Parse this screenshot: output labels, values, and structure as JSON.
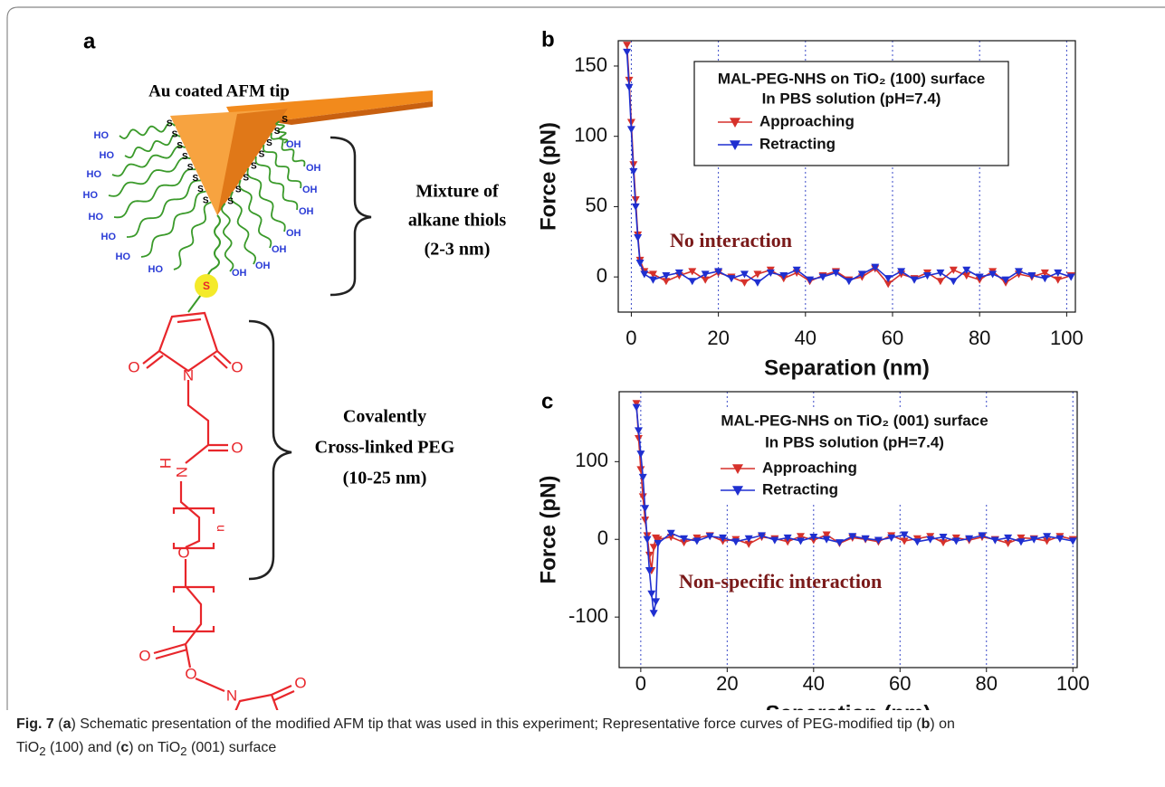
{
  "panel_a": {
    "label": "a",
    "tip": "Au coated AFM tip",
    "group_left": "HO",
    "group_right": "OH",
    "sulfur": "S",
    "bracket_top": [
      "Mixture of",
      "alkane thiols",
      "(2-3 nm)"
    ],
    "bracket_bottom": [
      "Covalently",
      "Cross-linked PEG",
      "(10-25 nm)"
    ],
    "atoms": {
      "O": "O",
      "N": "N",
      "H": "H",
      "n": "n"
    }
  },
  "chart_data": [
    {
      "type": "line",
      "panel": "b",
      "legend_title": [
        "MAL-PEG-NHS on TiO₂ (100) surface",
        "In PBS solution (pH=7.4)"
      ],
      "annotation": "No interaction",
      "xlabel": "Separation (nm)",
      "ylabel": "Force (pN)",
      "x": [
        -1,
        -0.5,
        0,
        0.5,
        1,
        1.5,
        2,
        3,
        5,
        8,
        11,
        14,
        17,
        20,
        23,
        26,
        29,
        32,
        35,
        38,
        41,
        44,
        47,
        50,
        53,
        56,
        59,
        62,
        65,
        68,
        71,
        74,
        77,
        80,
        83,
        86,
        89,
        92,
        95,
        98,
        101
      ],
      "series": [
        {
          "name": "Approaching",
          "color": "#d6312b",
          "values": [
            165,
            140,
            110,
            80,
            55,
            30,
            12,
            4,
            2,
            -3,
            1,
            4,
            -2,
            3,
            0,
            -4,
            2,
            5,
            -1,
            3,
            -3,
            1,
            4,
            -2,
            0,
            6,
            -5,
            2,
            -1,
            3,
            -3,
            5,
            1,
            -2,
            4,
            -4,
            2,
            0,
            3,
            -2,
            1
          ]
        },
        {
          "name": "Retracting",
          "color": "#1f2fd0",
          "values": [
            160,
            135,
            105,
            75,
            50,
            28,
            10,
            2,
            -2,
            1,
            3,
            -3,
            2,
            4,
            -1,
            2,
            -4,
            3,
            1,
            5,
            -2,
            0,
            3,
            -3,
            2,
            7,
            -1,
            4,
            -2,
            1,
            3,
            -3,
            5,
            0,
            2,
            -2,
            4,
            1,
            -1,
            3,
            0
          ]
        }
      ],
      "xlim": [
        -3,
        102
      ],
      "xticks": [
        0,
        20,
        40,
        60,
        80,
        100
      ],
      "ylim": [
        -25,
        168
      ],
      "yticks": [
        0,
        50,
        100,
        150
      ],
      "grid": "x",
      "legend_frame": true,
      "marker": "triangle-down"
    },
    {
      "type": "line",
      "panel": "c",
      "legend_title": [
        "MAL-PEG-NHS on TiO₂ (001) surface",
        "In PBS solution (pH=7.4)"
      ],
      "annotation": "Non-specific interaction",
      "xlabel": "Separation (nm)",
      "ylabel": "Force (pN)",
      "x": [
        -1,
        -0.5,
        0,
        0.5,
        1,
        1.5,
        2,
        2.5,
        3,
        3.5,
        4,
        7,
        10,
        13,
        16,
        19,
        22,
        25,
        28,
        31,
        34,
        37,
        40,
        43,
        46,
        49,
        52,
        55,
        58,
        61,
        64,
        67,
        70,
        73,
        76,
        79,
        82,
        85,
        88,
        91,
        94,
        97,
        100
      ],
      "series": [
        {
          "name": "Approaching",
          "color": "#d6312b",
          "values": [
            175,
            130,
            90,
            55,
            25,
            5,
            -20,
            -40,
            -10,
            2,
            0,
            3,
            -4,
            2,
            5,
            -2,
            0,
            -6,
            3,
            1,
            -3,
            4,
            -1,
            6,
            -5,
            2,
            0,
            -3,
            5,
            -2,
            1,
            4,
            -4,
            2,
            -1,
            3,
            0,
            -5,
            2,
            1,
            -2,
            4,
            0
          ]
        },
        {
          "name": "Retracting",
          "color": "#1f2fd0",
          "values": [
            170,
            140,
            110,
            80,
            40,
            0,
            -40,
            -70,
            -95,
            -80,
            -5,
            8,
            1,
            -2,
            4,
            2,
            -3,
            1,
            5,
            -1,
            2,
            -2,
            3,
            0,
            -4,
            4,
            1,
            -1,
            2,
            6,
            -3,
            0,
            3,
            -2,
            1,
            5,
            -1,
            2,
            -3,
            0,
            4,
            1,
            -2
          ]
        }
      ],
      "xlim": [
        -5,
        101
      ],
      "xticks": [
        0,
        20,
        40,
        60,
        80,
        100
      ],
      "ylim": [
        -165,
        190
      ],
      "yticks": [
        -100,
        0,
        100
      ],
      "grid": "x",
      "legend_frame": false,
      "marker": "triangle-down"
    }
  ],
  "caption": {
    "label": "Fig. 7",
    "parts": [
      " (",
      "a",
      ") Schematic presentation of the modified AFM tip that was used in this experiment; Representative force curves of PEG-modified tip (",
      "b",
      ") on",
      "TiO",
      "2",
      " (100) and (",
      "c",
      ") on TiO",
      "2",
      " (001) surface"
    ]
  }
}
